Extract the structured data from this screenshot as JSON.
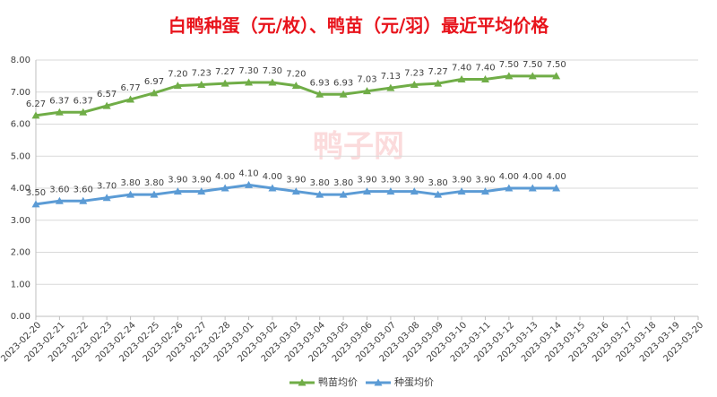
{
  "chart_data": {
    "type": "line",
    "title": "白鸭种蛋（元/枚）、鸭苗（元/羽）最近平均价格",
    "watermark": "鸭子网",
    "categories": [
      "2023-02-20",
      "2023-02-21",
      "2023-02-22",
      "2023-02-23",
      "2023-02-24",
      "2023-02-25",
      "2023-02-26",
      "2023-02-27",
      "2023-02-28",
      "2023-03-01",
      "2023-03-02",
      "2023-03-03",
      "2023-03-04",
      "2023-03-05",
      "2023-03-06",
      "2023-03-07",
      "2023-03-08",
      "2023-03-09",
      "2023-03-10",
      "2023-03-11",
      "2023-03-12",
      "2023-03-13",
      "2023-03-14",
      "2023-03-15",
      "2023-03-16",
      "2023-03-17",
      "2023-03-18",
      "2023-03-19",
      "2023-03-20"
    ],
    "series": [
      {
        "name": "鸭苗均价",
        "color": "#70ad47",
        "values": [
          6.27,
          6.37,
          6.37,
          6.57,
          6.77,
          6.97,
          7.2,
          7.23,
          7.27,
          7.3,
          7.3,
          7.2,
          6.93,
          6.93,
          7.03,
          7.13,
          7.23,
          7.27,
          7.4,
          7.4,
          7.5,
          7.5,
          7.5,
          null,
          null,
          null,
          null,
          null,
          null
        ],
        "value_labels": [
          "6.27",
          "6.37",
          "6.37",
          "6.57",
          "6.77",
          "6.97",
          "7.20",
          "7.23",
          "7.27",
          "7.30",
          "7.30",
          "7.20",
          "6.93",
          "6.93",
          "7.03",
          "7.13",
          "7.23",
          "7.27",
          "7.40",
          "7.40",
          "7.50",
          "7.50",
          "7.50",
          null,
          null,
          null,
          null,
          null,
          null
        ]
      },
      {
        "name": "种蛋均价",
        "color": "#5b9bd5",
        "values": [
          3.5,
          3.6,
          3.6,
          3.7,
          3.8,
          3.8,
          3.9,
          3.9,
          4.0,
          4.1,
          4.0,
          3.9,
          3.8,
          3.8,
          3.9,
          3.9,
          3.9,
          3.8,
          3.9,
          3.9,
          4.0,
          4.0,
          4.0,
          null,
          null,
          null,
          null,
          null,
          null
        ],
        "value_labels": [
          "3.50",
          "3.60",
          "3.60",
          "3.70",
          "3.80",
          "3.80",
          "3.90",
          "3.90",
          "4.00",
          "4.10",
          "4.00",
          "3.90",
          "3.80",
          "3.80",
          "3.90",
          "3.90",
          "3.90",
          "3.80",
          "3.90",
          "3.90",
          "4.00",
          "4.00",
          "4.00",
          null,
          null,
          null,
          null,
          null,
          null
        ]
      }
    ],
    "ylim": [
      0,
      8
    ],
    "yticks": [
      {
        "value": 0,
        "label": "0.00"
      },
      {
        "value": 1,
        "label": "1.00"
      },
      {
        "value": 2,
        "label": "2.00"
      },
      {
        "value": 3,
        "label": "3.00"
      },
      {
        "value": 4,
        "label": "4.00"
      },
      {
        "value": 5,
        "label": "5.00"
      },
      {
        "value": 6,
        "label": "6.00"
      },
      {
        "value": 7,
        "label": "7.00"
      },
      {
        "value": 8,
        "label": "8.00"
      }
    ],
    "grid": true,
    "legend": "bottom"
  }
}
